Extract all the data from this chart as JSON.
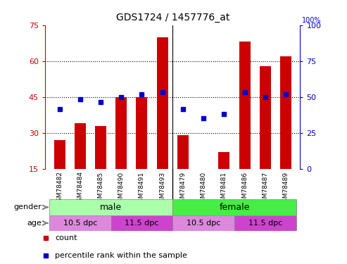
{
  "title": "GDS1724 / 1457776_at",
  "samples": [
    "GSM78482",
    "GSM78484",
    "GSM78485",
    "GSM78490",
    "GSM78491",
    "GSM78493",
    "GSM78479",
    "GSM78480",
    "GSM78481",
    "GSM78486",
    "GSM78487",
    "GSM78489"
  ],
  "bar_values": [
    27,
    34,
    33,
    45,
    45,
    70,
    29,
    14,
    22,
    68,
    58,
    62
  ],
  "dot_values": [
    40,
    44,
    43,
    45,
    46,
    47,
    40,
    36,
    38,
    47,
    45,
    46
  ],
  "ylim_left": [
    15,
    75
  ],
  "ylim_right": [
    0,
    100
  ],
  "yticks_left": [
    15,
    30,
    45,
    60,
    75
  ],
  "yticks_right": [
    0,
    25,
    50,
    75,
    100
  ],
  "bar_color": "#cc0000",
  "dot_color": "#0000cc",
  "gender_color_male": "#aaffaa",
  "gender_color_female": "#44ee44",
  "age_color_105": "#dd88dd",
  "age_color_115": "#cc44cc",
  "legend_count_color": "#cc0000",
  "legend_pct_color": "#0000cc",
  "tick_label_color_left": "#cc0000",
  "tick_label_color_right": "#0000cc",
  "background_color": "#ffffff",
  "grid_color": "#000000",
  "sample_bg_color": "#cccccc",
  "male_count": 6,
  "female_count": 6,
  "age_splits": [
    3,
    6,
    9
  ]
}
